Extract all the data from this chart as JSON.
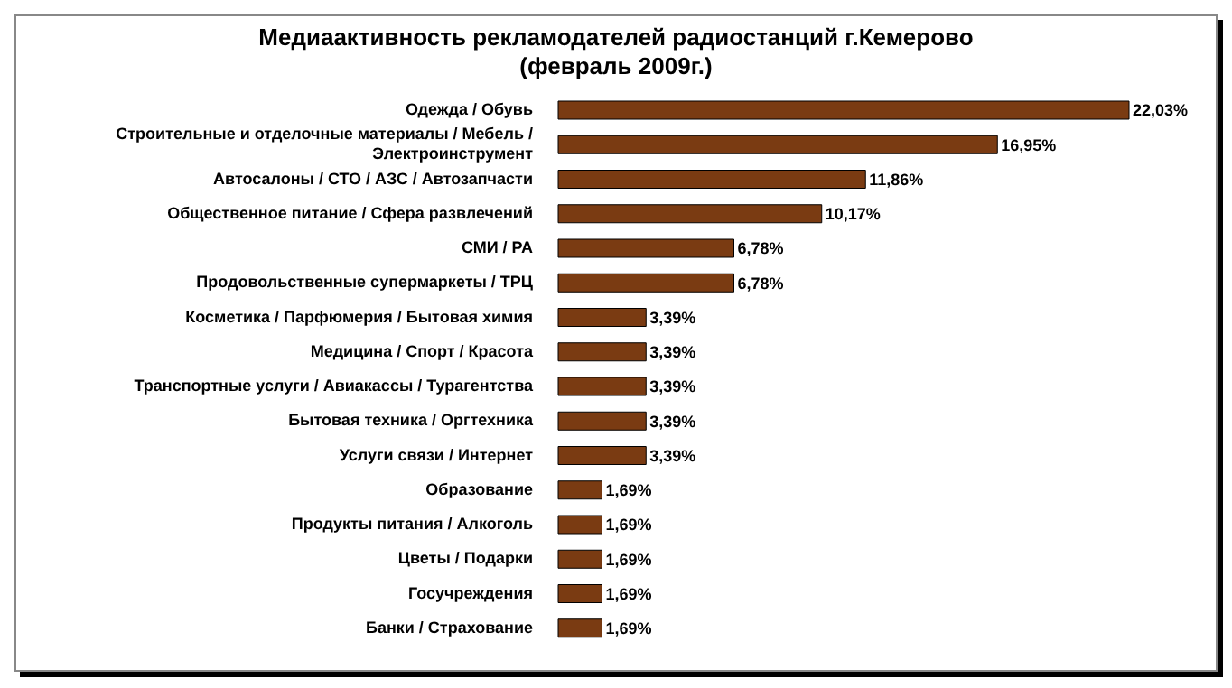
{
  "chart_data": {
    "type": "bar",
    "orientation": "horizontal",
    "title": "Медиаактивность рекламодателей радиостанций г.Кемерово\n(февраль 2009г.)",
    "categories": [
      "Одежда / Обувь",
      "Строительные и отделочные материалы / Мебель / Электроинструмент",
      "Автосалоны / СТО / АЗС / Автозапчасти",
      "Общественное питание / Сфера развлечений",
      "СМИ / РА",
      "Продовольственные супермаркеты / ТРЦ",
      "Косметика / Парфюмерия / Бытовая химия",
      "Медицина / Спорт / Красота",
      "Транспортные услуги / Авиакассы / Турагентства",
      "Бытовая техника / Оргтехника",
      "Услуги связи / Интернет",
      "Образование",
      "Продукты питания / Алкоголь",
      "Цветы / Подарки",
      "Госучреждения",
      "Банки / Страхование"
    ],
    "values": [
      22.03,
      16.95,
      11.86,
      10.17,
      6.78,
      6.78,
      3.39,
      3.39,
      3.39,
      3.39,
      3.39,
      1.69,
      1.69,
      1.69,
      1.69,
      1.69
    ],
    "value_labels": [
      "22,03%",
      "16,95%",
      "11,86%",
      "10,17%",
      "6,78%",
      "6,78%",
      "3,39%",
      "3,39%",
      "3,39%",
      "3,39%",
      "3,39%",
      "1,69%",
      "1,69%",
      "1,69%",
      "1,69%",
      "1,69%"
    ],
    "color": "#7a3b12"
  }
}
